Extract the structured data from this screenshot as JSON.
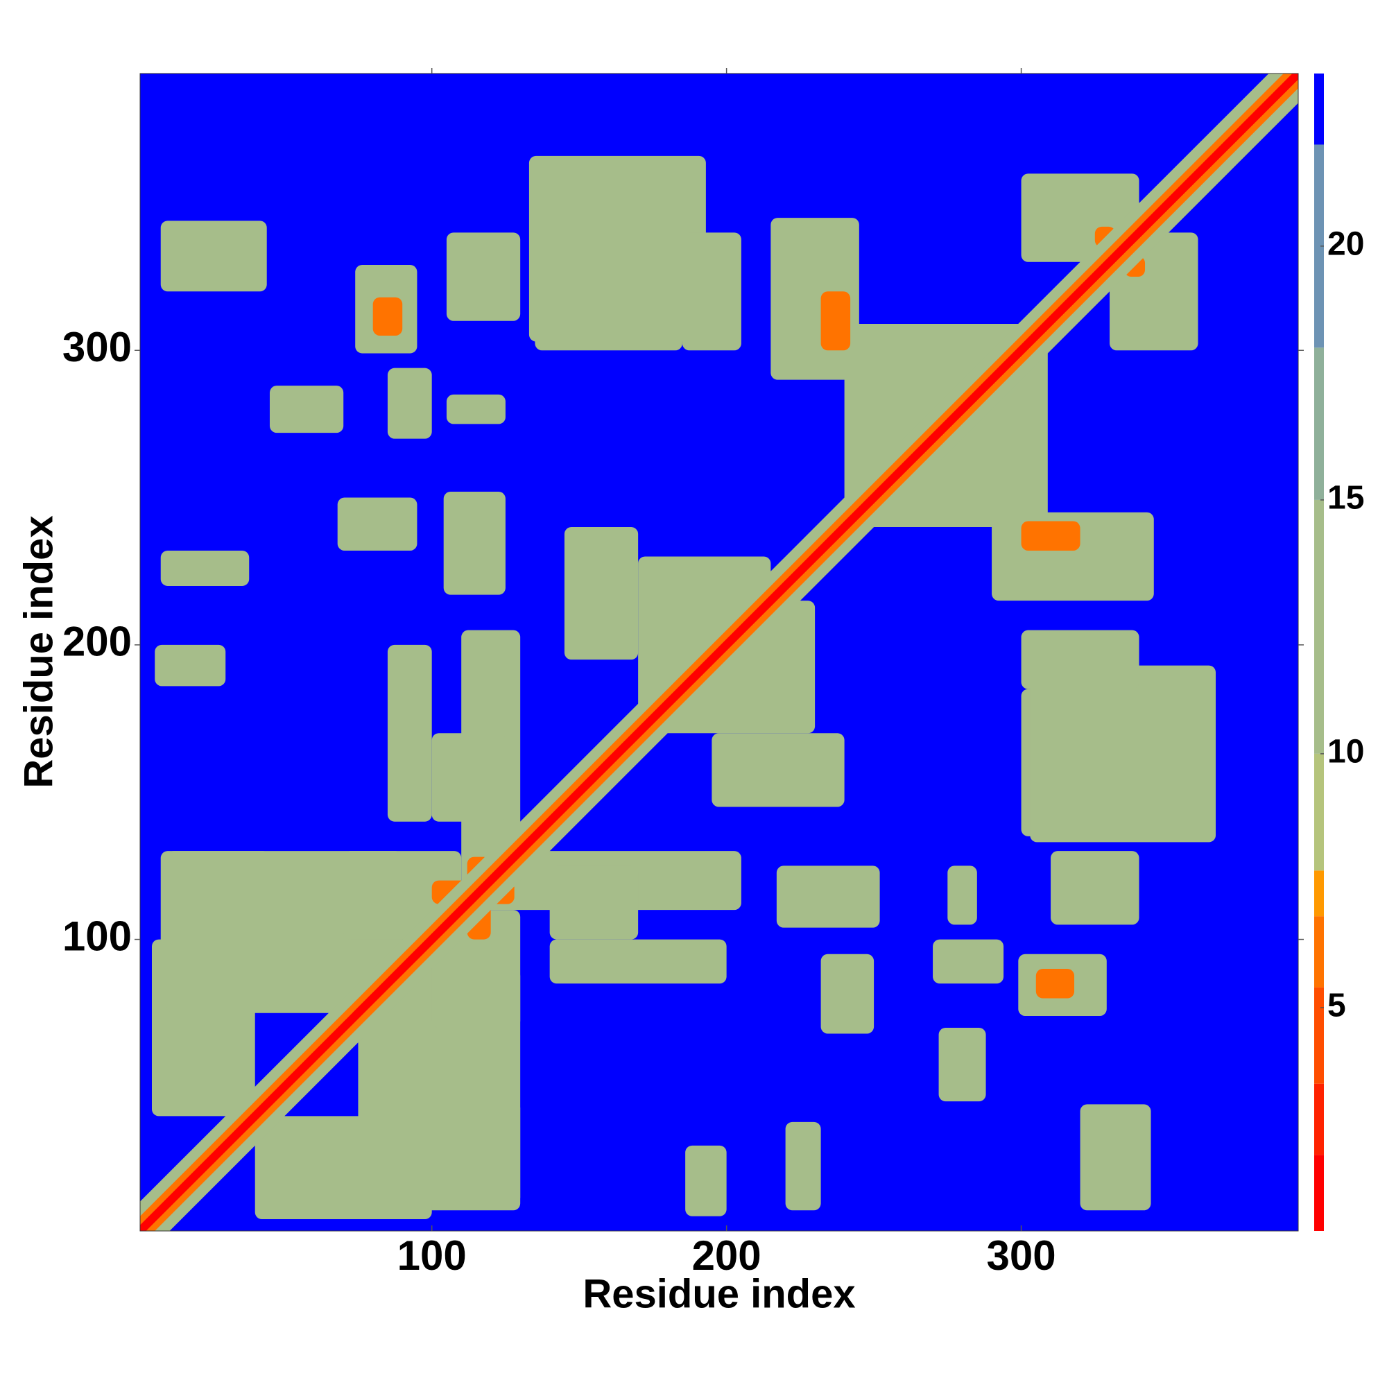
{
  "chart_data": {
    "type": "heatmap",
    "x_label": "Residue index",
    "y_label": "Residue index",
    "xlim": [
      1,
      394
    ],
    "ylim": [
      1,
      394
    ],
    "xticks": [
      100,
      200,
      300
    ],
    "yticks": [
      100,
      200,
      300
    ],
    "colorbar": {
      "levels": [
        0.6,
        2.1,
        3.5,
        5.4,
        6.8,
        7.7,
        10,
        15,
        18,
        22,
        23.4
      ],
      "colors": [
        "#ff0000",
        "#ff2200",
        "#ff4d00",
        "#ff7300",
        "#ff9900",
        "#b5c47c",
        "#a6bd8a",
        "#8fb09a",
        "#6d93b4",
        "#0000ff"
      ],
      "ticks": [
        5,
        10,
        15,
        20
      ]
    },
    "diagonal": [
      {
        "offset": 10,
        "value": 13
      },
      {
        "offset": 5,
        "value": 6
      },
      {
        "offset": 2,
        "value": 1.5
      }
    ],
    "patches": [
      {
        "x": [
          8,
          45
        ],
        "y": [
          95,
          130
        ],
        "value": 12
      },
      {
        "x": [
          5,
          40
        ],
        "y": [
          40,
          100
        ],
        "value": 13
      },
      {
        "x": [
          10,
          90
        ],
        "y": [
          75,
          130
        ],
        "value": 12
      },
      {
        "x": [
          70,
          110
        ],
        "y": [
          100,
          130
        ],
        "value": 12
      },
      {
        "x": [
          8,
          38
        ],
        "y": [
          220,
          232
        ],
        "value": 14
      },
      {
        "x": [
          6,
          30
        ],
        "y": [
          186,
          200
        ],
        "value": 14
      },
      {
        "x": [
          8,
          44
        ],
        "y": [
          320,
          344
        ],
        "value": 13
      },
      {
        "x": [
          45,
          70
        ],
        "y": [
          272,
          288
        ],
        "value": 15
      },
      {
        "x": [
          74,
          95
        ],
        "y": [
          299,
          329
        ],
        "value": 12
      },
      {
        "x": [
          68,
          95
        ],
        "y": [
          232,
          250
        ],
        "value": 12
      },
      {
        "x": [
          85,
          100
        ],
        "y": [
          270,
          294
        ],
        "value": 13
      },
      {
        "x": [
          85,
          100
        ],
        "y": [
          140,
          200
        ],
        "value": 13
      },
      {
        "x": [
          104,
          125
        ],
        "y": [
          217,
          252
        ],
        "value": 12
      },
      {
        "x": [
          105,
          130
        ],
        "y": [
          310,
          340
        ],
        "value": 12
      },
      {
        "x": [
          105,
          125
        ],
        "y": [
          275,
          285
        ],
        "value": 14
      },
      {
        "x": [
          110,
          130
        ],
        "y": [
          118,
          205
        ],
        "value": 12
      },
      {
        "x": [
          100,
          125
        ],
        "y": [
          140,
          170
        ],
        "value": 12
      },
      {
        "x": [
          135,
          170
        ],
        "y": [
          330,
          360
        ],
        "value": 13
      },
      {
        "x": [
          135,
          185
        ],
        "y": [
          300,
          325
        ],
        "value": 13
      },
      {
        "x": [
          133,
          193
        ],
        "y": [
          303,
          366
        ],
        "value": 15
      },
      {
        "x": [
          185,
          205
        ],
        "y": [
          300,
          340
        ],
        "value": 13
      },
      {
        "x": [
          215,
          245
        ],
        "y": [
          290,
          345
        ],
        "value": 12
      },
      {
        "x": [
          145,
          170
        ],
        "y": [
          195,
          240
        ],
        "value": 11
      },
      {
        "x": [
          175,
          230
        ],
        "y": [
          170,
          215
        ],
        "value": 11
      },
      {
        "x": [
          240,
          309
        ],
        "y": [
          241,
          307
        ],
        "value": 11
      },
      {
        "x": [
          300,
          340
        ],
        "y": [
          330,
          360
        ],
        "value": 11
      },
      {
        "x": [
          112,
          120
        ],
        "y": [
          100,
          128
        ],
        "value": 6
      },
      {
        "x": [
          80,
          90
        ],
        "y": [
          305,
          318
        ],
        "value": 6
      },
      {
        "x": [
          232,
          242
        ],
        "y": [
          300,
          320
        ],
        "value": 6
      },
      {
        "x": [
          325,
          332
        ],
        "y": [
          335,
          342
        ],
        "value": 6
      }
    ]
  }
}
